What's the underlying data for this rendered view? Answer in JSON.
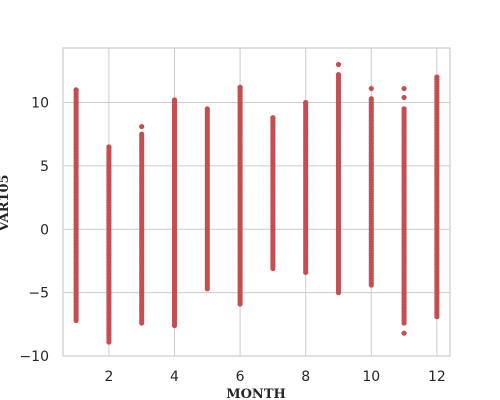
{
  "chart_data": {
    "type": "scatter",
    "title": "",
    "xlabel": "MONTH",
    "ylabel": "VAR105",
    "xlim": [
      0.6,
      12.4
    ],
    "ylim": [
      -10,
      14.3
    ],
    "x_ticks": [
      2,
      4,
      6,
      8,
      10,
      12
    ],
    "y_ticks": [
      10,
      5,
      0,
      -5,
      -10
    ],
    "x_tick_labels": [
      "2",
      "4",
      "6",
      "8",
      "10",
      "12"
    ],
    "y_tick_labels": [
      "10",
      "5",
      "0",
      "−5",
      "−10"
    ],
    "grid": true,
    "legend": "none",
    "marker_color": "#c44e52",
    "grid_color": "#cccccc",
    "axes_edge_color": "#cccccc",
    "series": [
      {
        "columns": [
          {
            "x": 1,
            "min": -7.2,
            "max": 11.0,
            "outliers": []
          },
          {
            "x": 2,
            "min": -8.9,
            "max": 6.5,
            "outliers": []
          },
          {
            "x": 3,
            "min": -7.4,
            "max": 7.5,
            "outliers": [
              8.1
            ]
          },
          {
            "x": 4,
            "min": -7.6,
            "max": 10.2,
            "outliers": []
          },
          {
            "x": 5,
            "min": -4.7,
            "max": 9.5,
            "outliers": []
          },
          {
            "x": 6,
            "min": -5.9,
            "max": 11.2,
            "outliers": []
          },
          {
            "x": 7,
            "min": -3.1,
            "max": 8.8,
            "outliers": []
          },
          {
            "x": 8,
            "min": -3.4,
            "max": 10.0,
            "outliers": []
          },
          {
            "x": 9,
            "min": -5.0,
            "max": 12.2,
            "outliers": [
              13.0
            ]
          },
          {
            "x": 10,
            "min": -4.4,
            "max": 10.3,
            "outliers": [
              11.1
            ]
          },
          {
            "x": 11,
            "min": -7.4,
            "max": 9.5,
            "outliers": [
              -8.2,
              10.4,
              11.1
            ]
          },
          {
            "x": 12,
            "min": -6.9,
            "max": 12.0,
            "outliers": []
          }
        ]
      }
    ]
  }
}
